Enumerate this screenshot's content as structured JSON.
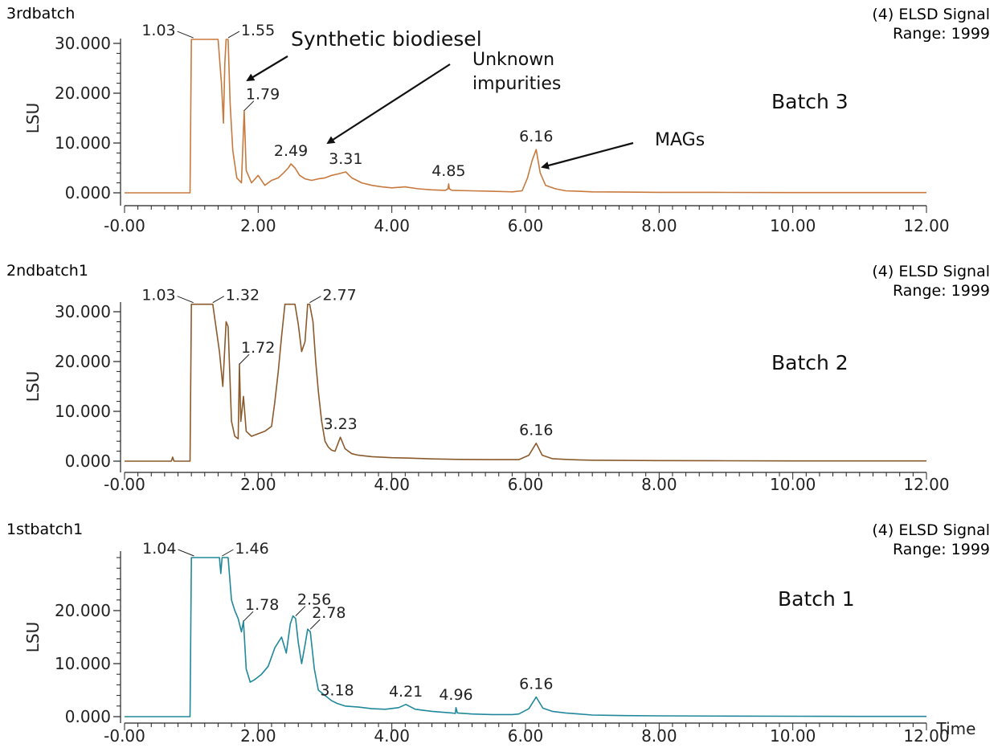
{
  "colors": {
    "batch3": "#c8793e",
    "batch2": "#8b5a2b",
    "batch1": "#21889c",
    "annotation": "#111111"
  },
  "chart_data": [
    {
      "type": "line",
      "name": "3rdbatch",
      "signal_line1": "(4) ELSD Signal",
      "signal_line2": "Range: 1999",
      "label": "Batch 3",
      "ylabel": "LSU",
      "xlim": [
        0,
        12
      ],
      "ylim": [
        -2500,
        31500
      ],
      "yticks": [
        "0.000",
        "10.000",
        "20.000",
        "30.000"
      ],
      "ytick_values": [
        0,
        10000,
        20000,
        30000
      ],
      "xticks": [
        "-0.00",
        "2.00",
        "4.00",
        "6.00",
        "8.00",
        "10.00",
        "12.00"
      ],
      "xtick_values": [
        0,
        2,
        4,
        6,
        8,
        10,
        12
      ],
      "x": [
        0,
        0.98,
        1.0,
        1.03,
        1.4,
        1.45,
        1.48,
        1.5,
        1.52,
        1.55,
        1.58,
        1.62,
        1.68,
        1.75,
        1.79,
        1.82,
        1.9,
        2.0,
        2.1,
        2.2,
        2.3,
        2.38,
        2.45,
        2.49,
        2.55,
        2.62,
        2.7,
        2.8,
        2.9,
        3.0,
        3.1,
        3.2,
        3.31,
        3.4,
        3.55,
        3.7,
        3.85,
        4.0,
        4.2,
        4.4,
        4.6,
        4.8,
        4.84,
        4.85,
        4.86,
        4.9,
        5.2,
        5.5,
        5.8,
        5.95,
        6.03,
        6.1,
        6.16,
        6.22,
        6.3,
        6.45,
        6.6,
        6.8,
        7.0,
        7.5,
        8.0,
        9.0,
        10.0,
        11.0,
        12.0
      ],
      "y": [
        0,
        0,
        30800,
        30800,
        30800,
        22000,
        14000,
        26000,
        30800,
        30800,
        18000,
        8500,
        3000,
        2000,
        16500,
        4500,
        2000,
        3500,
        1500,
        2500,
        3000,
        4000,
        5000,
        5800,
        5000,
        3500,
        2800,
        2500,
        2800,
        3000,
        3500,
        3800,
        4200,
        3000,
        2000,
        1500,
        1200,
        1000,
        1200,
        800,
        600,
        500,
        800,
        1800,
        800,
        500,
        400,
        300,
        200,
        400,
        3000,
        6500,
        8700,
        4000,
        1500,
        800,
        400,
        300,
        200,
        150,
        100,
        80,
        50,
        50,
        50
      ],
      "peaks": [
        {
          "label": "1.03",
          "x": 1.03
        },
        {
          "label": "1.55",
          "x": 1.55
        },
        {
          "label": "1.79",
          "x": 1.79
        },
        {
          "label": "2.49",
          "x": 2.49
        },
        {
          "label": "3.31",
          "x": 3.31
        },
        {
          "label": "4.85",
          "x": 4.85
        },
        {
          "label": "6.16",
          "x": 6.16
        }
      ],
      "annotations": {
        "synthetic": "Synthetic biodiesel",
        "unknown_line1": "Unknown",
        "unknown_line2": "impurities",
        "mags": "MAGs"
      }
    },
    {
      "type": "line",
      "name": "2ndbatch1",
      "signal_line1": "(4) ELSD Signal",
      "signal_line2": "Range: 1999",
      "label": "Batch 2",
      "ylabel": "LSU",
      "xlim": [
        0,
        12
      ],
      "ylim": [
        -2500,
        31500
      ],
      "yticks": [
        "0.000",
        "10.000",
        "20.000",
        "30.000"
      ],
      "ytick_values": [
        0,
        10000,
        20000,
        30000
      ],
      "xticks": [
        "-0.00",
        "2.00",
        "4.00",
        "6.00",
        "8.00",
        "10.00",
        "12.00"
      ],
      "xtick_values": [
        0,
        2,
        4,
        6,
        8,
        10,
        12
      ],
      "x": [
        0,
        0.7,
        0.72,
        0.74,
        0.98,
        1.0,
        1.03,
        1.32,
        1.42,
        1.47,
        1.52,
        1.55,
        1.6,
        1.65,
        1.7,
        1.72,
        1.74,
        1.78,
        1.82,
        1.9,
        2.0,
        2.1,
        2.2,
        2.25,
        2.3,
        2.35,
        2.4,
        2.55,
        2.6,
        2.65,
        2.7,
        2.74,
        2.77,
        2.82,
        2.86,
        2.9,
        2.95,
        3.0,
        3.05,
        3.1,
        3.15,
        3.23,
        3.3,
        3.4,
        3.5,
        3.7,
        4.0,
        4.3,
        4.6,
        5.0,
        5.5,
        5.9,
        6.05,
        6.16,
        6.25,
        6.4,
        6.6,
        6.8,
        7.0,
        8.0,
        9.0,
        10.0,
        11.0,
        12.0
      ],
      "y": [
        0,
        0,
        800,
        0,
        0,
        31500,
        31500,
        31500,
        22000,
        15000,
        28000,
        27000,
        8000,
        5000,
        4500,
        19500,
        8000,
        13000,
        6000,
        5000,
        5500,
        6000,
        7000,
        12000,
        18000,
        25000,
        31500,
        31500,
        27500,
        22000,
        24000,
        31500,
        31500,
        28000,
        20000,
        14000,
        8000,
        4000,
        2800,
        2200,
        2000,
        4800,
        2500,
        1500,
        1200,
        900,
        700,
        600,
        450,
        350,
        300,
        300,
        1200,
        3600,
        1200,
        500,
        350,
        250,
        200,
        120,
        80,
        50,
        50,
        50
      ],
      "peaks": [
        {
          "label": "1.03",
          "x": 1.03
        },
        {
          "label": "1.32",
          "x": 1.32
        },
        {
          "label": "1.72",
          "x": 1.72
        },
        {
          "label": "2.77",
          "x": 2.77
        },
        {
          "label": "3.23",
          "x": 3.23
        },
        {
          "label": "6.16",
          "x": 6.16
        }
      ]
    },
    {
      "type": "line",
      "name": "1stbatch1",
      "signal_line1": "(4) ELSD Signal",
      "signal_line2": "Range: 1999",
      "label": "Batch 1",
      "ylabel": "LSU",
      "xlabel": "Time",
      "xlim": [
        0,
        12
      ],
      "ylim": [
        -2500,
        31500
      ],
      "yticks": [
        "0.000",
        "10.000",
        "20.000"
      ],
      "ytick_values": [
        0,
        10000,
        20000
      ],
      "xticks": [
        "-0.00",
        "2.00",
        "4.00",
        "6.00",
        "8.00",
        "10.00",
        "12.00"
      ],
      "xtick_values": [
        0,
        2,
        4,
        6,
        8,
        10,
        12
      ],
      "x": [
        0,
        0.98,
        1.0,
        1.04,
        1.42,
        1.44,
        1.46,
        1.5,
        1.55,
        1.6,
        1.65,
        1.7,
        1.75,
        1.78,
        1.82,
        1.88,
        1.95,
        2.05,
        2.15,
        2.25,
        2.35,
        2.42,
        2.48,
        2.52,
        2.56,
        2.6,
        2.65,
        2.7,
        2.74,
        2.78,
        2.84,
        2.9,
        3.0,
        3.1,
        3.18,
        3.3,
        3.5,
        3.7,
        3.9,
        4.1,
        4.21,
        4.35,
        4.6,
        4.9,
        4.95,
        4.96,
        4.98,
        5.2,
        5.5,
        5.8,
        5.9,
        6.05,
        6.16,
        6.26,
        6.4,
        6.6,
        6.8,
        7.0,
        7.5,
        8.0,
        9.0,
        10.0,
        11.0,
        12.0
      ],
      "y": [
        0,
        0,
        30000,
        30000,
        30000,
        27000,
        30000,
        30000,
        30000,
        22000,
        20000,
        18500,
        16000,
        18000,
        9000,
        6500,
        7000,
        8000,
        9500,
        13000,
        15000,
        12000,
        17500,
        19000,
        18500,
        14000,
        10000,
        13500,
        16500,
        16000,
        9000,
        5000,
        4000,
        3000,
        2500,
        2000,
        1800,
        1500,
        1400,
        1700,
        2300,
        1400,
        1000,
        700,
        600,
        1700,
        700,
        500,
        400,
        400,
        500,
        1500,
        3700,
        1600,
        1000,
        700,
        500,
        300,
        200,
        150,
        100,
        80,
        50,
        50
      ],
      "peaks": [
        {
          "label": "1.04",
          "x": 1.04
        },
        {
          "label": "1.46",
          "x": 1.46
        },
        {
          "label": "1.78",
          "x": 1.78
        },
        {
          "label": "2.56",
          "x": 2.56
        },
        {
          "label": "2.78",
          "x": 2.78
        },
        {
          "label": "3.18",
          "x": 3.18
        },
        {
          "label": "4.21",
          "x": 4.21
        },
        {
          "label": "4.96",
          "x": 4.96
        },
        {
          "label": "6.16",
          "x": 6.16
        }
      ]
    }
  ]
}
